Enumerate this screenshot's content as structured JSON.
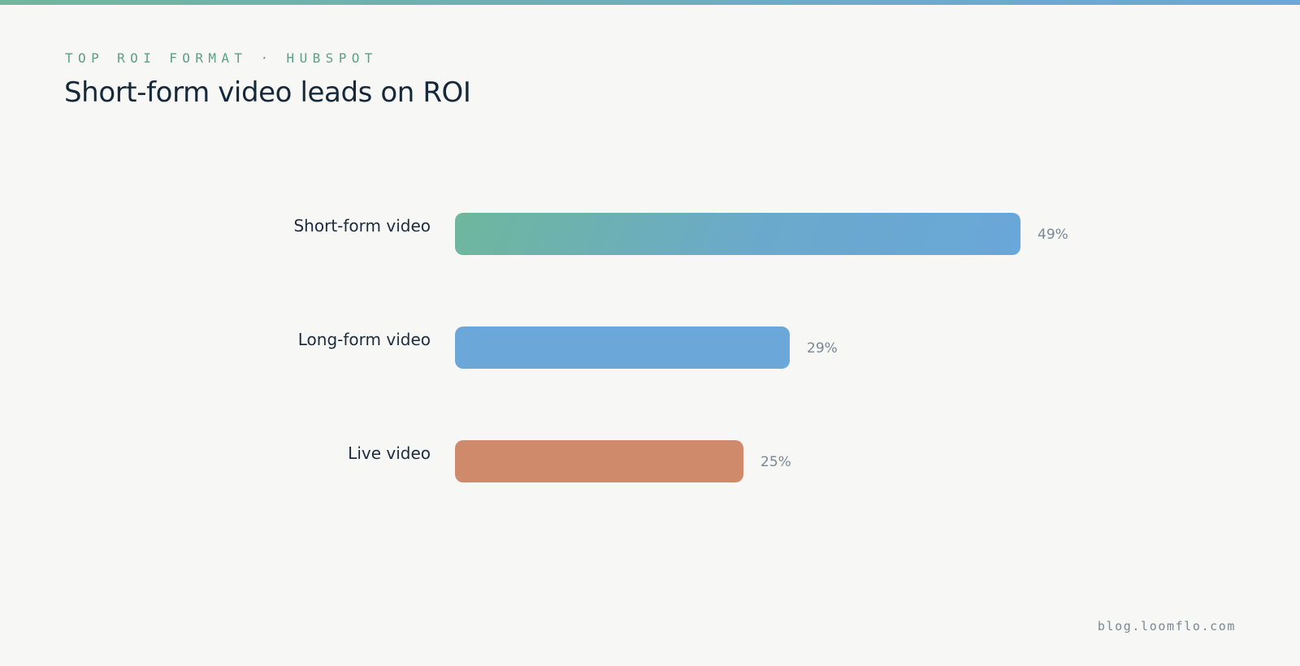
{
  "header": {
    "eyebrow": "TOP ROI FORMAT · HUBSPOT",
    "title": "Short-form video leads on ROI"
  },
  "footer": {
    "source": "blog.loomflo.com"
  },
  "colors": {
    "accent_green": "#6fb79d",
    "accent_blue": "#6aa7da",
    "accent_orange": "#ce8a6a",
    "background": "#f7f7f5"
  },
  "chart_data": {
    "type": "bar",
    "orientation": "horizontal",
    "title": "Short-form video leads on ROI",
    "xlabel": "",
    "ylabel": "",
    "categories": [
      "Short-form video",
      "Long-form video",
      "Live video"
    ],
    "values": [
      49,
      29,
      25
    ],
    "value_labels": [
      "49%",
      "29%",
      "25%"
    ],
    "unit": "%",
    "xlim": [
      0,
      49
    ],
    "grid": false,
    "legend": "none"
  }
}
